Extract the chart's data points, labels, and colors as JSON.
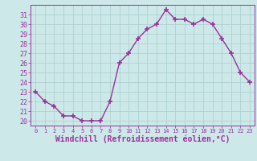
{
  "x": [
    0,
    1,
    2,
    3,
    4,
    5,
    6,
    7,
    8,
    9,
    10,
    11,
    12,
    13,
    14,
    15,
    16,
    17,
    18,
    19,
    20,
    21,
    22,
    23
  ],
  "y": [
    23,
    22,
    21.5,
    20.5,
    20.5,
    20,
    20,
    20,
    22,
    26,
    27,
    28.5,
    29.5,
    30,
    31.5,
    30.5,
    30.5,
    30,
    30.5,
    30,
    28.5,
    27,
    25,
    24
  ],
  "line_color": "#993399",
  "marker": "+",
  "markersize": 4,
  "linewidth": 1.0,
  "xlabel": "Windchill (Refroidissement éolien,°C)",
  "xlabel_fontsize": 7,
  "ylabel_ticks": [
    20,
    21,
    22,
    23,
    24,
    25,
    26,
    27,
    28,
    29,
    30,
    31
  ],
  "xtick_labels": [
    "0",
    "1",
    "2",
    "3",
    "4",
    "5",
    "6",
    "7",
    "8",
    "9",
    "10",
    "11",
    "12",
    "13",
    "14",
    "15",
    "16",
    "17",
    "18",
    "19",
    "20",
    "21",
    "22",
    "23"
  ],
  "ylim": [
    19.5,
    32
  ],
  "xlim": [
    -0.5,
    23.5
  ],
  "bg_color": "#cce8e8",
  "grid_color": "#aacece",
  "tick_color": "#993399",
  "label_color": "#993399"
}
